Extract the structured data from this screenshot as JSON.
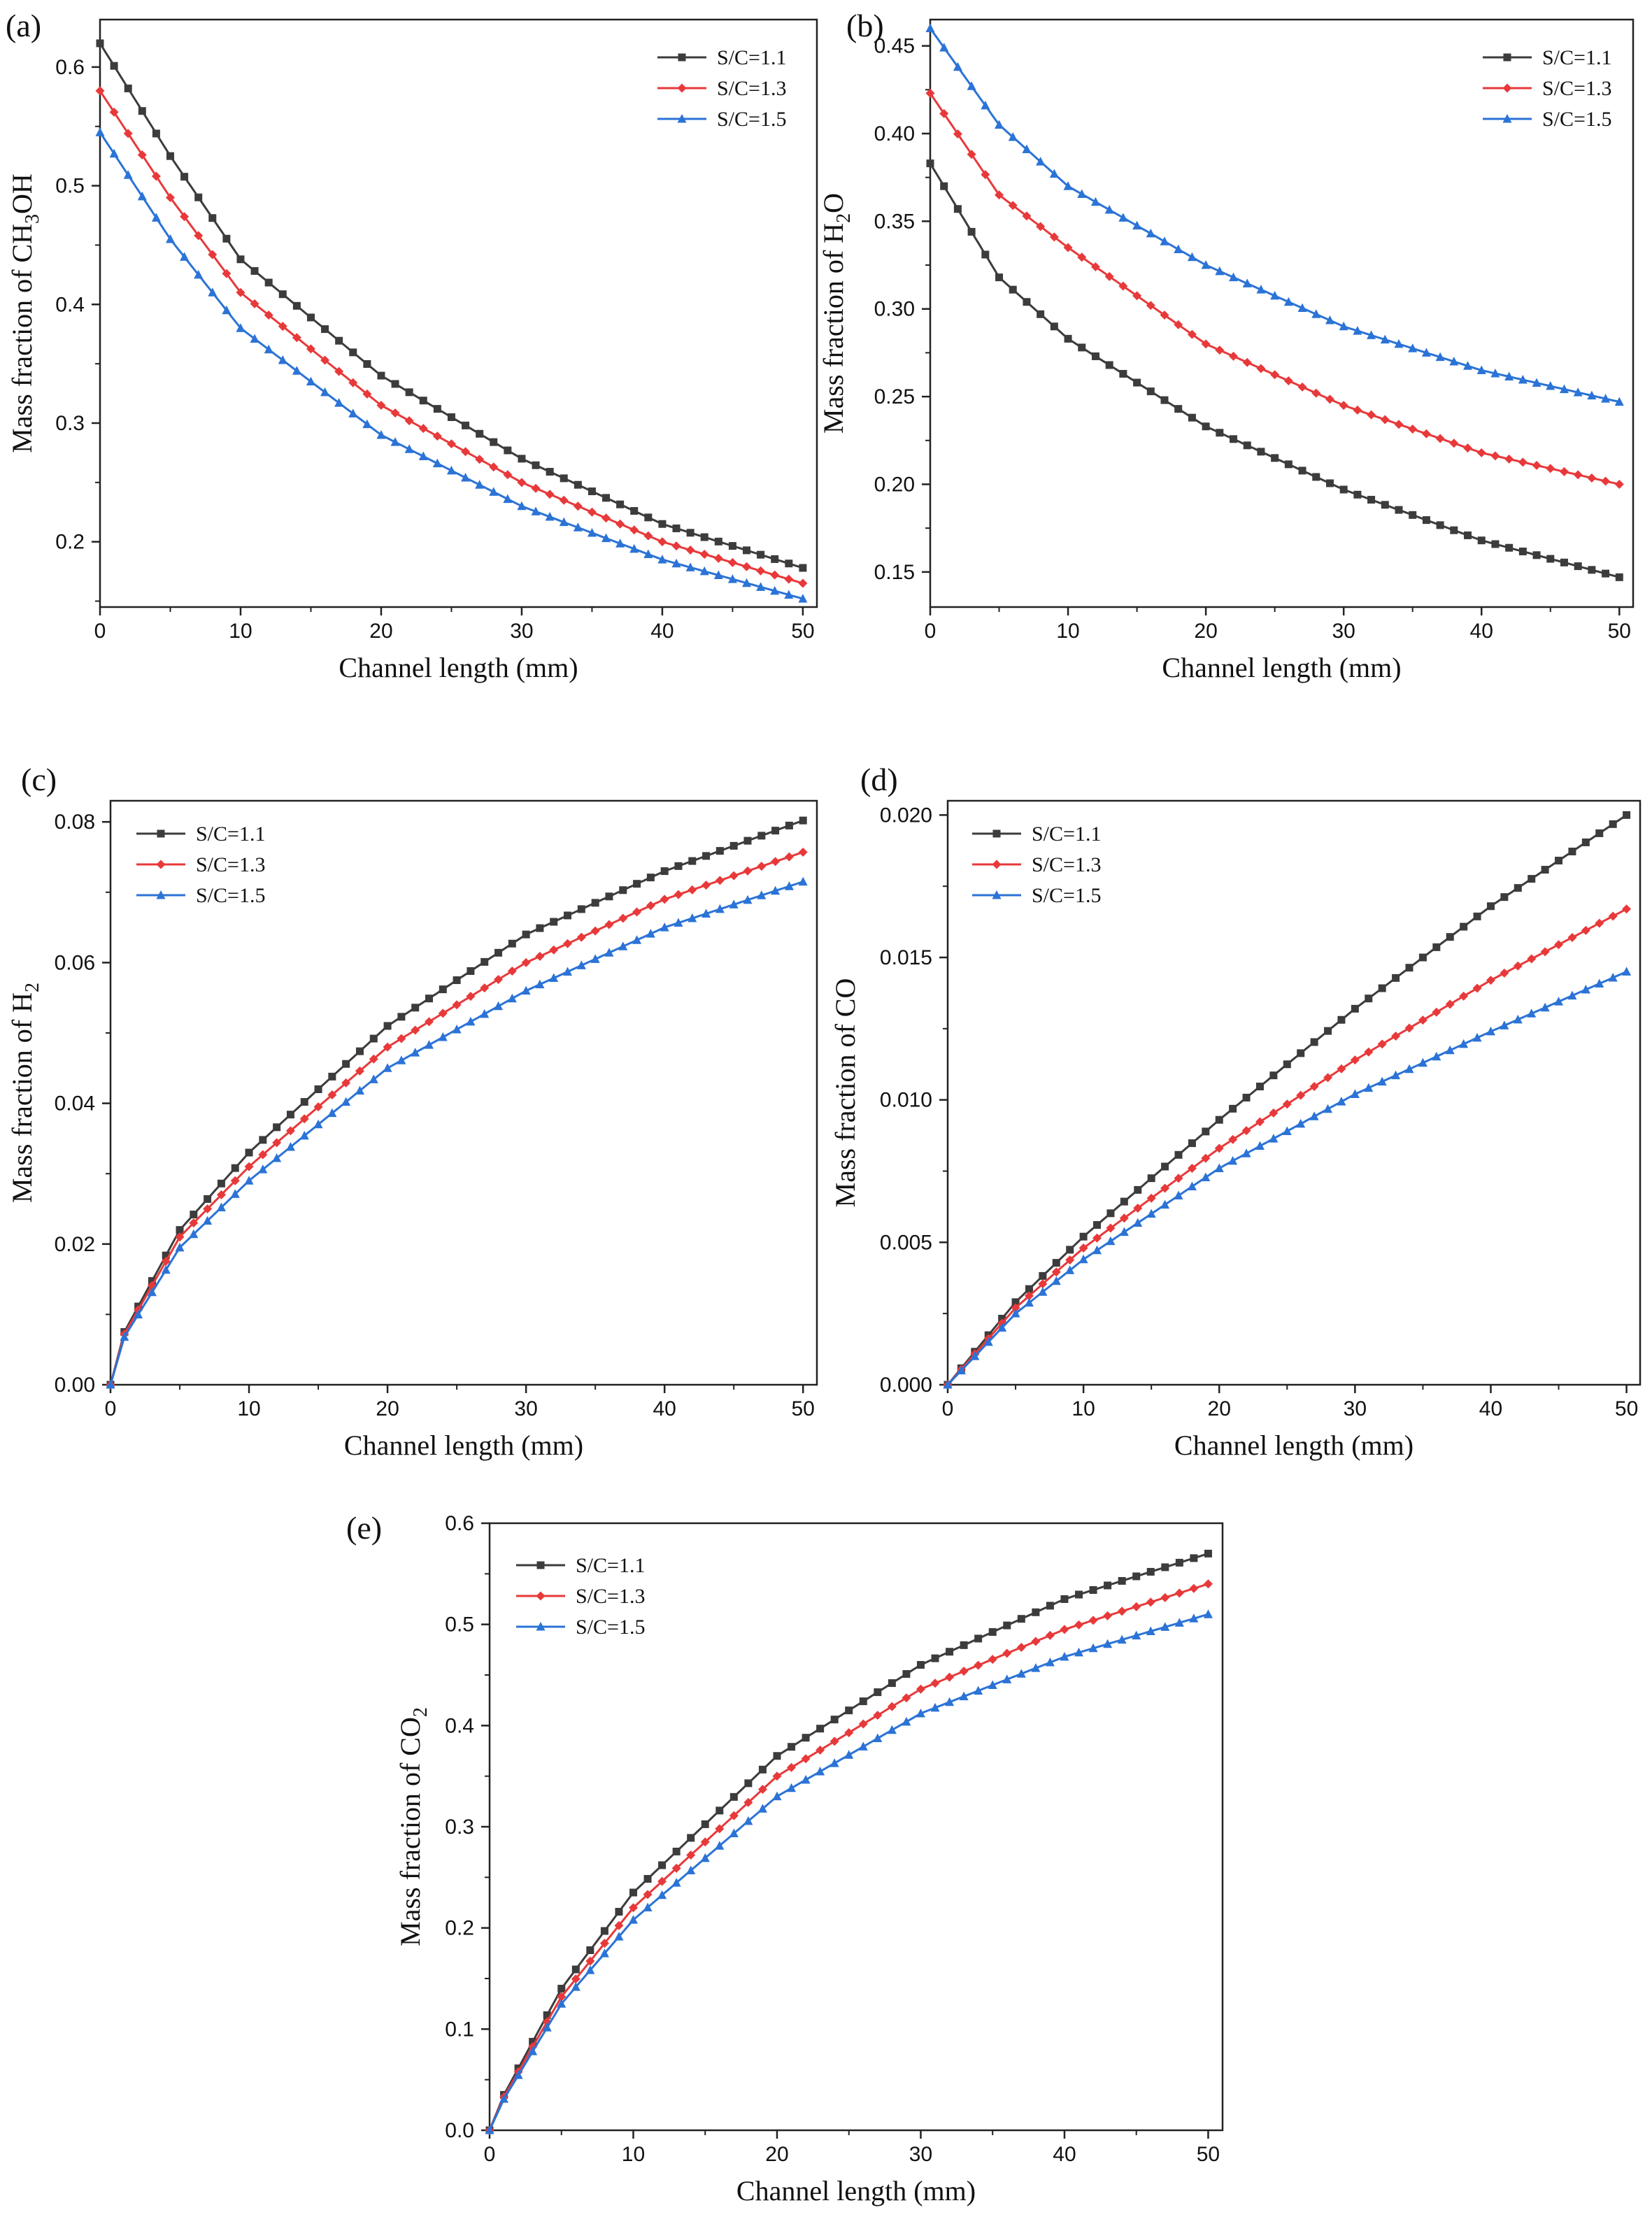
{
  "figure": {
    "panels": [
      {
        "letter": "(a)",
        "ylabel_main": "Mass fraction of CH",
        "ylabel_sub": "3",
        "ylabel_tail": "OH",
        "xlabel": "Channel length (mm)",
        "xticks": [
          "0",
          "10",
          "20",
          "30",
          "40",
          "50"
        ],
        "yticks": [
          "0.2",
          "0.3",
          "0.4",
          "0.5",
          "0.6"
        ],
        "legend": [
          "S/C=1.1",
          "S/C=1.3",
          "S/C=1.5"
        ]
      },
      {
        "letter": "(b)",
        "ylabel_main": "Mass fraction of H",
        "ylabel_sub": "2",
        "ylabel_tail": "O",
        "xlabel": "Channel length (mm)",
        "xticks": [
          "0",
          "10",
          "20",
          "30",
          "40",
          "50"
        ],
        "yticks": [
          "0.15",
          "0.20",
          "0.25",
          "0.30",
          "0.35",
          "0.40",
          "0.45"
        ],
        "legend": [
          "S/C=1.1",
          "S/C=1.3",
          "S/C=1.5"
        ]
      },
      {
        "letter": "(c)",
        "ylabel_main": "Mass fraction of H",
        "ylabel_sub": "2",
        "ylabel_tail": "",
        "xlabel": "Channel length (mm)",
        "xticks": [
          "0",
          "10",
          "20",
          "30",
          "40",
          "50"
        ],
        "yticks": [
          "0.00",
          "0.02",
          "0.04",
          "0.06",
          "0.08"
        ],
        "legend": [
          "S/C=1.1",
          "S/C=1.3",
          "S/C=1.5"
        ]
      },
      {
        "letter": "(d)",
        "ylabel_main": "Mass fraction of CO",
        "ylabel_sub": "",
        "ylabel_tail": "",
        "xlabel": "Channel length (mm)",
        "xticks": [
          "0",
          "10",
          "20",
          "30",
          "40",
          "50"
        ],
        "yticks": [
          "0.000",
          "0.005",
          "0.010",
          "0.015",
          "0.020"
        ],
        "legend": [
          "S/C=1.1",
          "S/C=1.3",
          "S/C=1.5"
        ]
      },
      {
        "letter": "(e)",
        "ylabel_main": "Mass fraction of CO",
        "ylabel_sub": "2",
        "ylabel_tail": "",
        "xlabel": "Channel length (mm)",
        "xticks": [
          "0",
          "10",
          "20",
          "30",
          "40",
          "50"
        ],
        "yticks": [
          "0.0",
          "0.1",
          "0.2",
          "0.3",
          "0.4",
          "0.5",
          "0.6"
        ],
        "legend": [
          "S/C=1.1",
          "S/C=1.3",
          "S/C=1.5"
        ]
      }
    ]
  },
  "colors": {
    "sc11": "#3c3c3c",
    "sc13": "#e8393a",
    "sc15": "#2b73d6"
  },
  "chart_data": [
    {
      "type": "line",
      "panel": "(a)",
      "xlabel": "Channel length (mm)",
      "ylabel": "Mass fraction of CH3OH",
      "xlim": [
        0,
        51
      ],
      "ylim": [
        0.145,
        0.64
      ],
      "grid": false,
      "legend_position": "top-right",
      "x": [
        0,
        5,
        10,
        20,
        30,
        40,
        50
      ],
      "series": [
        {
          "name": "S/C=1.1",
          "values": [
            0.62,
            0.525,
            0.438,
            0.34,
            0.27,
            0.215,
            0.178
          ]
        },
        {
          "name": "S/C=1.3",
          "values": [
            0.58,
            0.49,
            0.41,
            0.315,
            0.25,
            0.2,
            0.165
          ]
        },
        {
          "name": "S/C=1.5",
          "values": [
            0.545,
            0.455,
            0.38,
            0.29,
            0.23,
            0.185,
            0.152
          ]
        }
      ]
    },
    {
      "type": "line",
      "panel": "(b)",
      "xlabel": "Channel length (mm)",
      "ylabel": "Mass fraction of H2O",
      "xlim": [
        0,
        51
      ],
      "ylim": [
        0.13,
        0.465
      ],
      "grid": false,
      "legend_position": "top-right",
      "x": [
        0,
        5,
        10,
        20,
        30,
        40,
        50
      ],
      "series": [
        {
          "name": "S/C=1.1",
          "values": [
            0.383,
            0.318,
            0.283,
            0.233,
            0.197,
            0.168,
            0.147
          ]
        },
        {
          "name": "S/C=1.3",
          "values": [
            0.423,
            0.365,
            0.335,
            0.28,
            0.245,
            0.218,
            0.2
          ]
        },
        {
          "name": "S/C=1.5",
          "values": [
            0.46,
            0.405,
            0.37,
            0.325,
            0.29,
            0.265,
            0.247
          ]
        }
      ]
    },
    {
      "type": "line",
      "panel": "(c)",
      "xlabel": "Channel length (mm)",
      "ylabel": "Mass fraction of H2",
      "xlim": [
        0,
        51
      ],
      "ylim": [
        0,
        0.083
      ],
      "grid": false,
      "legend_position": "top-left",
      "x": [
        0,
        1,
        5,
        10,
        20,
        30,
        40,
        50
      ],
      "series": [
        {
          "name": "S/C=1.1",
          "values": [
            0,
            0.0075,
            0.022,
            0.033,
            0.051,
            0.064,
            0.073,
            0.0802
          ]
        },
        {
          "name": "S/C=1.3",
          "values": [
            0,
            0.0072,
            0.021,
            0.031,
            0.048,
            0.06,
            0.069,
            0.0757
          ]
        },
        {
          "name": "S/C=1.5",
          "values": [
            0,
            0.0068,
            0.0195,
            0.029,
            0.045,
            0.056,
            0.065,
            0.0715
          ]
        }
      ]
    },
    {
      "type": "line",
      "panel": "(d)",
      "xlabel": "Channel length (mm)",
      "ylabel": "Mass fraction of CO",
      "xlim": [
        0,
        51
      ],
      "ylim": [
        0,
        0.0205
      ],
      "grid": false,
      "legend_position": "top-left",
      "x": [
        0,
        5,
        10,
        20,
        30,
        40,
        50
      ],
      "series": [
        {
          "name": "S/C=1.1",
          "values": [
            0,
            0.0029,
            0.0052,
            0.0093,
            0.0132,
            0.0168,
            0.02
          ]
        },
        {
          "name": "S/C=1.3",
          "values": [
            0,
            0.0027,
            0.0048,
            0.0083,
            0.0114,
            0.0142,
            0.0167
          ]
        },
        {
          "name": "S/C=1.5",
          "values": [
            0,
            0.0025,
            0.0044,
            0.0076,
            0.0102,
            0.0124,
            0.0145
          ]
        }
      ]
    },
    {
      "type": "line",
      "panel": "(e)",
      "xlabel": "Channel length (mm)",
      "ylabel": "Mass fraction of CO2",
      "xlim": [
        0,
        51
      ],
      "ylim": [
        0,
        0.6
      ],
      "grid": false,
      "legend_position": "top-left",
      "x": [
        0,
        1,
        5,
        10,
        20,
        30,
        40,
        50
      ],
      "series": [
        {
          "name": "S/C=1.1",
          "values": [
            0,
            0.035,
            0.14,
            0.235,
            0.37,
            0.46,
            0.525,
            0.57
          ]
        },
        {
          "name": "S/C=1.3",
          "values": [
            0,
            0.033,
            0.132,
            0.22,
            0.35,
            0.436,
            0.495,
            0.54
          ]
        },
        {
          "name": "S/C=1.5",
          "values": [
            0,
            0.031,
            0.125,
            0.208,
            0.33,
            0.412,
            0.468,
            0.51
          ]
        }
      ]
    }
  ]
}
